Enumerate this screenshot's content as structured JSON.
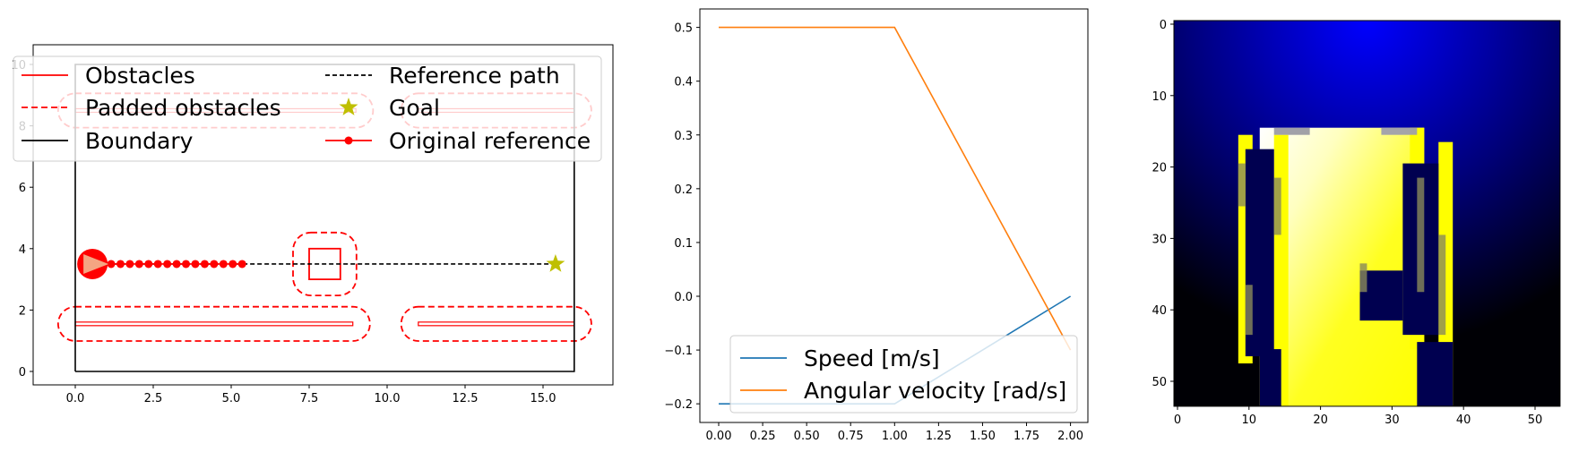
{
  "chart_data": [
    {
      "type": "line",
      "panel": "trajectory-map",
      "xlim": [
        -1.3,
        17.4
      ],
      "ylim": [
        -0.5,
        10.5
      ],
      "xticks": [
        "0.0",
        "2.5",
        "5.0",
        "7.5",
        "10.0",
        "12.5",
        "15.0"
      ],
      "yticks": [
        "0",
        "2",
        "4",
        "6",
        "8",
        "10"
      ],
      "grid": false,
      "legend_position": "top",
      "legend": [
        "Obstacles",
        "Reference path",
        "Padded obstacles",
        "Goal",
        "Boundary",
        "Original reference"
      ],
      "colors": {
        "obstacle": "#ff0000",
        "reference": "#000000",
        "goal": "#bfbf00",
        "boundary": "#000000"
      },
      "boundary": [
        [
          0,
          0
        ],
        [
          16,
          0
        ],
        [
          16,
          10
        ],
        [
          0,
          10
        ],
        [
          0,
          0
        ]
      ],
      "obstacles": [
        {
          "type": "segment",
          "from": [
            0,
            1.55
          ],
          "to": [
            8.9,
            1.55
          ]
        },
        {
          "type": "segment",
          "from": [
            11.0,
            1.55
          ],
          "to": [
            16.0,
            1.55
          ]
        },
        {
          "type": "segment",
          "from": [
            0,
            8.5
          ],
          "to": [
            9.0,
            8.5
          ]
        },
        {
          "type": "segment",
          "from": [
            11.0,
            8.5
          ],
          "to": [
            16.0,
            8.5
          ]
        },
        {
          "type": "square",
          "center": [
            8.0,
            3.5
          ],
          "size": 1.0
        }
      ],
      "padding": 0.55,
      "reference_path": {
        "x": [
          0.55,
          15.4
        ],
        "y": [
          3.5,
          3.5
        ]
      },
      "original_reference": {
        "x": [
          0.55,
          0.85,
          1.15,
          1.45,
          1.75,
          2.05,
          2.35,
          2.65,
          2.95,
          3.25,
          3.55,
          3.85,
          4.15,
          4.45,
          4.75,
          5.05,
          5.35
        ],
        "y": [
          3.5,
          3.5,
          3.5,
          3.5,
          3.5,
          3.5,
          3.5,
          3.5,
          3.5,
          3.5,
          3.5,
          3.5,
          3.5,
          3.5,
          3.5,
          3.5,
          3.5
        ]
      },
      "robot": {
        "x": 0.55,
        "y": 3.5
      },
      "goal": {
        "x": 15.4,
        "y": 3.5
      }
    },
    {
      "type": "line",
      "panel": "velocity-profile",
      "xlim": [
        -0.1,
        2.1
      ],
      "ylim": [
        -0.235,
        0.535
      ],
      "xticks": [
        "0.00",
        "0.25",
        "0.50",
        "0.75",
        "1.00",
        "1.25",
        "1.50",
        "1.75",
        "2.00"
      ],
      "yticks": [
        "−0.2",
        "−0.1",
        "0.0",
        "0.1",
        "0.2",
        "0.3",
        "0.4",
        "0.5"
      ],
      "grid": false,
      "legend_position": "lower-center",
      "series": [
        {
          "name": "Speed [m/s]",
          "color": "#1f77b4",
          "x": [
            0,
            1,
            2
          ],
          "y": [
            -0.2,
            -0.2,
            0.0
          ]
        },
        {
          "name": "Angular velocity [rad/s]",
          "color": "#ff7f0e",
          "x": [
            0,
            1,
            2
          ],
          "y": [
            0.5,
            0.5,
            -0.1
          ]
        }
      ]
    },
    {
      "type": "heatmap",
      "panel": "occupancy-image",
      "rows": 54,
      "cols": 54,
      "xticks": [
        "0",
        "10",
        "20",
        "30",
        "40",
        "50"
      ],
      "yticks": [
        "0",
        "10",
        "20",
        "30",
        "40",
        "50"
      ],
      "colors": {
        "background": "#0000ff",
        "free": "#ffff00"
      },
      "glow": {
        "row": 15,
        "col": 27
      },
      "free_region": {
        "rows": [
          15,
          53
        ],
        "cols": [
          9,
          40
        ]
      },
      "wall_columns": [
        {
          "cols": [
            9,
            10
          ],
          "rows": [
            16,
            47
          ]
        },
        {
          "cols": [
            14,
            15
          ],
          "rows": [
            16,
            53
          ]
        },
        {
          "cols": [
            33,
            34
          ],
          "rows": [
            15,
            45
          ]
        },
        {
          "cols": [
            37,
            38
          ],
          "rows": [
            17,
            53
          ]
        }
      ],
      "dark_holes": [
        {
          "cols": [
            10,
            13
          ],
          "rows": [
            18,
            46
          ]
        },
        {
          "cols": [
            12,
            14
          ],
          "rows": [
            46,
            53
          ]
        },
        {
          "cols": [
            26,
            31
          ],
          "rows": [
            35,
            41
          ]
        },
        {
          "cols": [
            32,
            36
          ],
          "rows": [
            20,
            43
          ]
        },
        {
          "cols": [
            34,
            38
          ],
          "rows": [
            45,
            53
          ]
        }
      ]
    }
  ]
}
